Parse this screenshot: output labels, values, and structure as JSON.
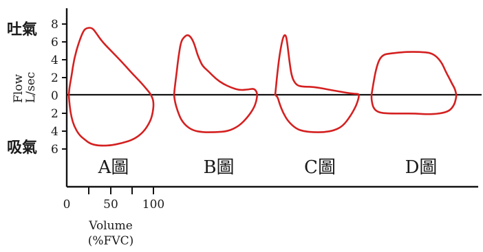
{
  "chart_data": {
    "type": "line",
    "label_exhale": "吐氣",
    "label_inhale": "吸氣",
    "ylabel_line1": "Flow",
    "ylabel_line2": "L/sec",
    "xlabel_line1": "Volume",
    "xlabel_line2": "(%FVC)",
    "y_ticks_exhale": [
      "8",
      "6",
      "4",
      "2"
    ],
    "y_tick_zero": "0",
    "y_ticks_inhale": [
      "2",
      "4",
      "6"
    ],
    "x_ticks": [
      "0",
      "50",
      "100"
    ],
    "ylim": [
      -6,
      8
    ],
    "xlim": [
      0,
      100
    ],
    "series": [
      {
        "name": "A圖",
        "x": [
          0,
          1,
          3,
          6,
          12,
          17,
          21,
          27,
          31,
          38,
          50,
          60,
          72,
          82,
          90,
          95,
          98,
          97,
          94,
          86,
          75,
          62,
          47,
          34,
          25,
          18,
          12,
          6,
          3,
          1,
          0
        ],
        "y": [
          0,
          1,
          2,
          4,
          6,
          7.2,
          7.5,
          7.5,
          7,
          6,
          4.8,
          3.8,
          2.5,
          1.5,
          0.6,
          0,
          -0.8,
          -2,
          -3,
          -4.2,
          -5,
          -5.4,
          -5.7,
          -5.7,
          -5.5,
          -5,
          -4.5,
          -3.5,
          -2.5,
          -1.3,
          0
        ]
      },
      {
        "name": "B圖",
        "x": [
          0,
          1,
          3,
          5,
          8,
          12,
          15,
          18,
          21,
          24,
          27,
          30,
          33,
          40,
          48,
          57,
          66,
          76,
          86,
          92,
          95,
          96,
          95,
          92,
          85,
          75,
          62,
          47,
          33,
          22,
          14,
          8,
          4,
          1,
          0
        ],
        "y": [
          0,
          1,
          2.5,
          4.2,
          6,
          6.5,
          6.7,
          6.6,
          6.2,
          5.5,
          4.5,
          3.8,
          3.2,
          2.6,
          1.8,
          1.2,
          0.8,
          0.5,
          0.6,
          0.7,
          0.4,
          0,
          -0.7,
          -1.5,
          -2.5,
          -3.5,
          -4.1,
          -4.2,
          -4.2,
          -4,
          -3.5,
          -2.8,
          -1.8,
          -0.8,
          0
        ]
      },
      {
        "name": "C圖",
        "x": [
          0,
          2,
          5,
          9,
          12,
          14,
          16,
          19,
          24,
          31,
          40,
          50,
          60,
          72,
          84,
          92,
          95,
          97,
          95,
          92,
          86,
          78,
          68,
          56,
          44,
          33,
          24,
          15,
          9,
          5,
          3,
          0
        ],
        "y": [
          0,
          2,
          4.5,
          6.5,
          6.8,
          5.8,
          4,
          2,
          1.1,
          0.9,
          0.9,
          0.8,
          0.6,
          0.4,
          0.2,
          0.1,
          0.1,
          0,
          -0.8,
          -1.5,
          -2.5,
          -3.5,
          -4,
          -4.2,
          -4.2,
          -4.1,
          -3.8,
          -3,
          -2,
          -1,
          -0.3,
          0
        ]
      },
      {
        "name": "D圖",
        "x": [
          0,
          2,
          5,
          9,
          14,
          20,
          28,
          40,
          55,
          70,
          80,
          86,
          90,
          93,
          96,
          98,
          97,
          95,
          90,
          80,
          65,
          50,
          35,
          20,
          8,
          2,
          0,
          0
        ],
        "y": [
          0,
          1.2,
          2.8,
          4,
          4.5,
          4.6,
          4.7,
          4.8,
          4.8,
          4.7,
          3.8,
          2.5,
          1.8,
          1.2,
          0.7,
          0,
          -0.6,
          -1.2,
          -1.8,
          -2.1,
          -2.2,
          -2.1,
          -2.1,
          -2.1,
          -2,
          -1.5,
          -0.6,
          0
        ]
      }
    ]
  }
}
